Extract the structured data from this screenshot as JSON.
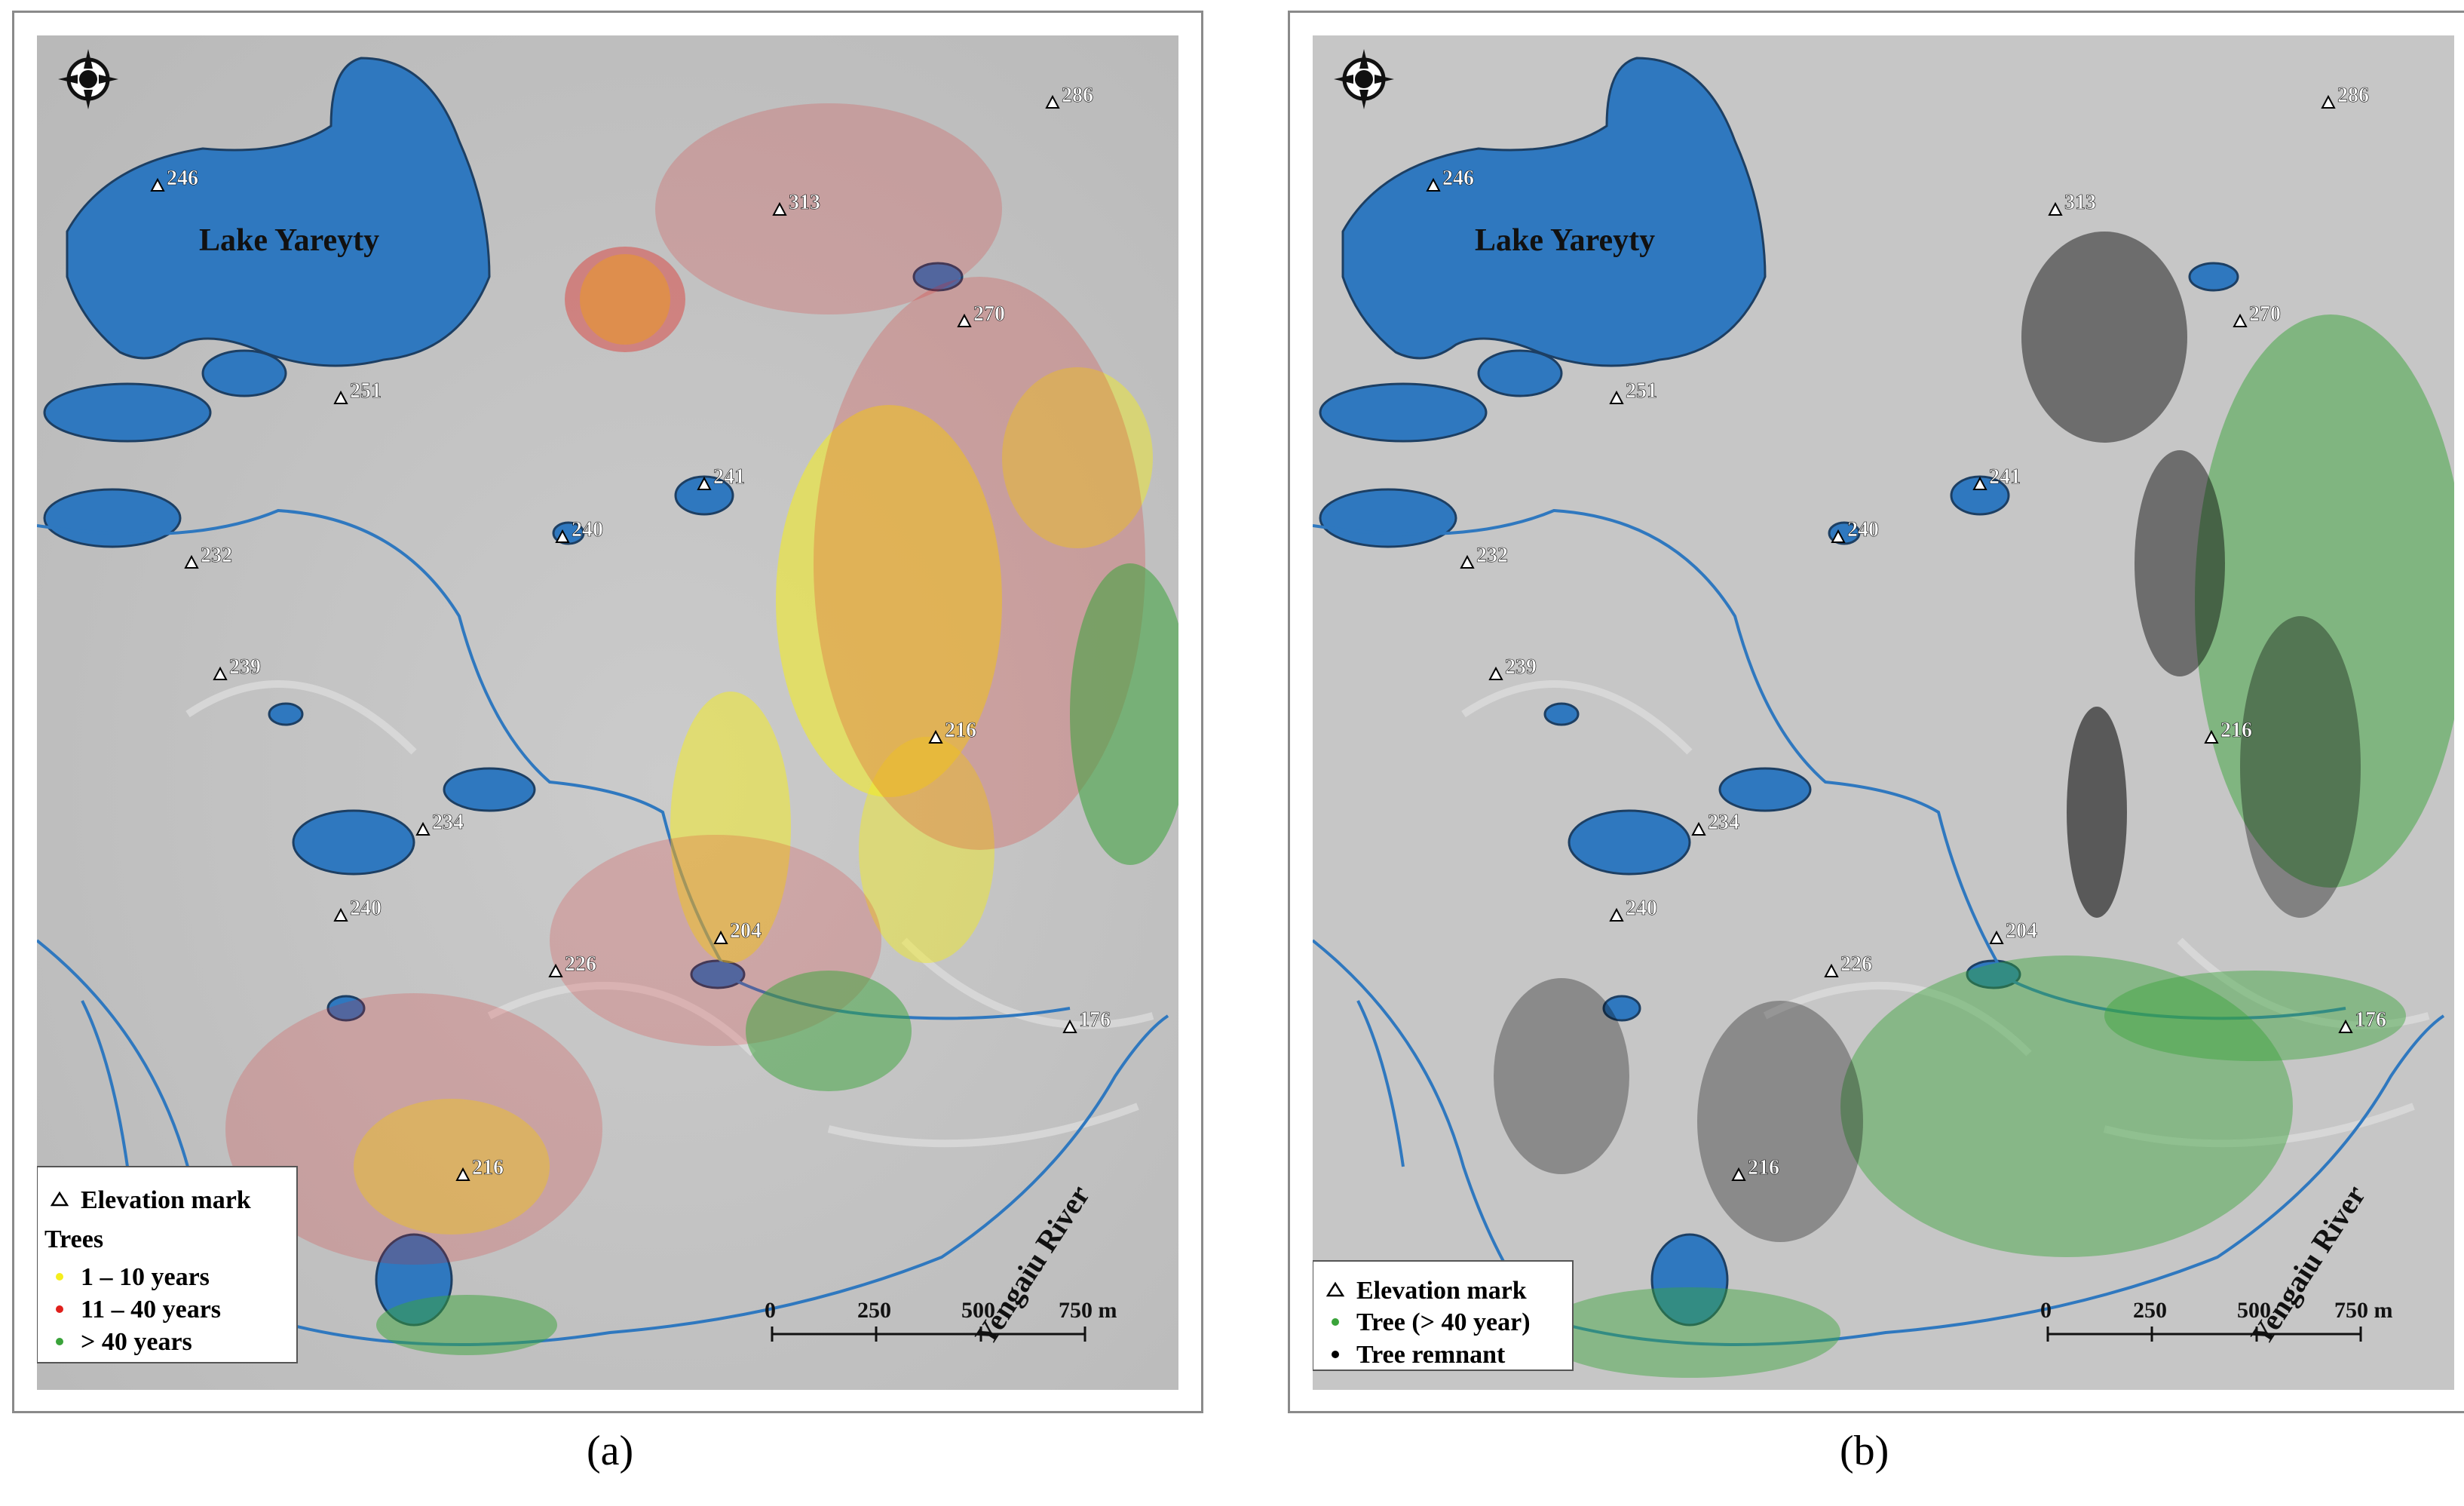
{
  "panels": [
    {
      "id": "a",
      "caption_prefix": "(",
      "caption_letter": "a",
      "caption_suffix": ")",
      "lake_label": "Lake Yareyty",
      "river_label": "Yengaiu River",
      "elevations": [
        "286",
        "246",
        "313",
        "270",
        "251",
        "241",
        "240",
        "232",
        "239",
        "216",
        "234",
        "240",
        "204",
        "226",
        "176",
        "216"
      ],
      "legend": {
        "elevation": "Elevation mark",
        "trees_heading": "Trees",
        "items": [
          {
            "label": "1 – 10 years",
            "color": "#f5ee1c"
          },
          {
            "label": "11 – 40 years",
            "color": "#e0201c"
          },
          {
            "label": "> 40 years",
            "color": "#3aa33a"
          }
        ]
      },
      "scale": {
        "ticks": [
          "0",
          "250",
          "500",
          "750 m"
        ]
      }
    },
    {
      "id": "b",
      "caption_prefix": "(",
      "caption_letter": "b",
      "caption_suffix": ")",
      "lake_label": "Lake Yareyty",
      "river_label": "Yengaiu River",
      "elevations": [
        "286",
        "246",
        "313",
        "270",
        "251",
        "241",
        "240",
        "232",
        "239",
        "216",
        "234",
        "240",
        "204",
        "226",
        "176",
        "216"
      ],
      "legend": {
        "elevation": "Elevation mark",
        "items": [
          {
            "label": "Tree (> 40 year)",
            "color": "#3aa33a"
          },
          {
            "label": "Tree remnant",
            "color": "#000000"
          }
        ]
      },
      "scale": {
        "ticks": [
          "0",
          "250",
          "500",
          "750 m"
        ]
      }
    }
  ],
  "colors": {
    "water": "#2f78bf",
    "water_edge": "#1d3f63",
    "terrain": "#c9c9c9",
    "elevation_text": "#ffffff"
  }
}
